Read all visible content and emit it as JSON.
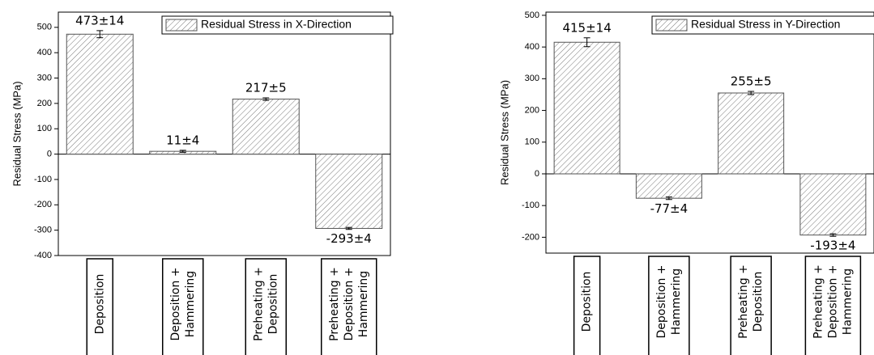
{
  "chart_data": [
    {
      "type": "bar",
      "ylabel": "Residual Stress (MPa)",
      "categories": [
        [
          "Deposition"
        ],
        [
          "Deposition +",
          "Hammering"
        ],
        [
          "Preheating +",
          "Deposition"
        ],
        [
          "Preheating +",
          "Deposition +",
          "Hammering"
        ]
      ],
      "series": [
        {
          "name": "Residual Stress in X-Direction",
          "color": "#555555",
          "values": [
            473,
            11,
            217,
            -293
          ],
          "errors": [
            14,
            4,
            5,
            4
          ],
          "value_labels": [
            "473±14",
            "11±4",
            "217±5",
            "-293±4"
          ]
        }
      ],
      "ylim": [
        -400,
        560
      ],
      "yticks": [
        -400,
        -300,
        -200,
        -100,
        0,
        100,
        200,
        300,
        400,
        500
      ],
      "legend": "upper right"
    },
    {
      "type": "bar",
      "ylabel": "Residual Stress (MPa)",
      "categories": [
        [
          "Deposition"
        ],
        [
          "Deposition +",
          "Hammering"
        ],
        [
          "Preheating +",
          "Deposition"
        ],
        [
          "Preheating +",
          "Deposition +",
          "Hammering"
        ]
      ],
      "series": [
        {
          "name": "Residual Stress in Y-Direction",
          "color": "#555555",
          "values": [
            415,
            -77,
            255,
            -193
          ],
          "errors": [
            14,
            4,
            5,
            4
          ],
          "value_labels": [
            "415±14",
            "-77±4",
            "255±5",
            "-193±4"
          ]
        }
      ],
      "ylim": [
        -250,
        510
      ],
      "yticks": [
        -200,
        -100,
        0,
        100,
        200,
        300,
        400,
        500
      ],
      "legend": "upper right"
    }
  ]
}
